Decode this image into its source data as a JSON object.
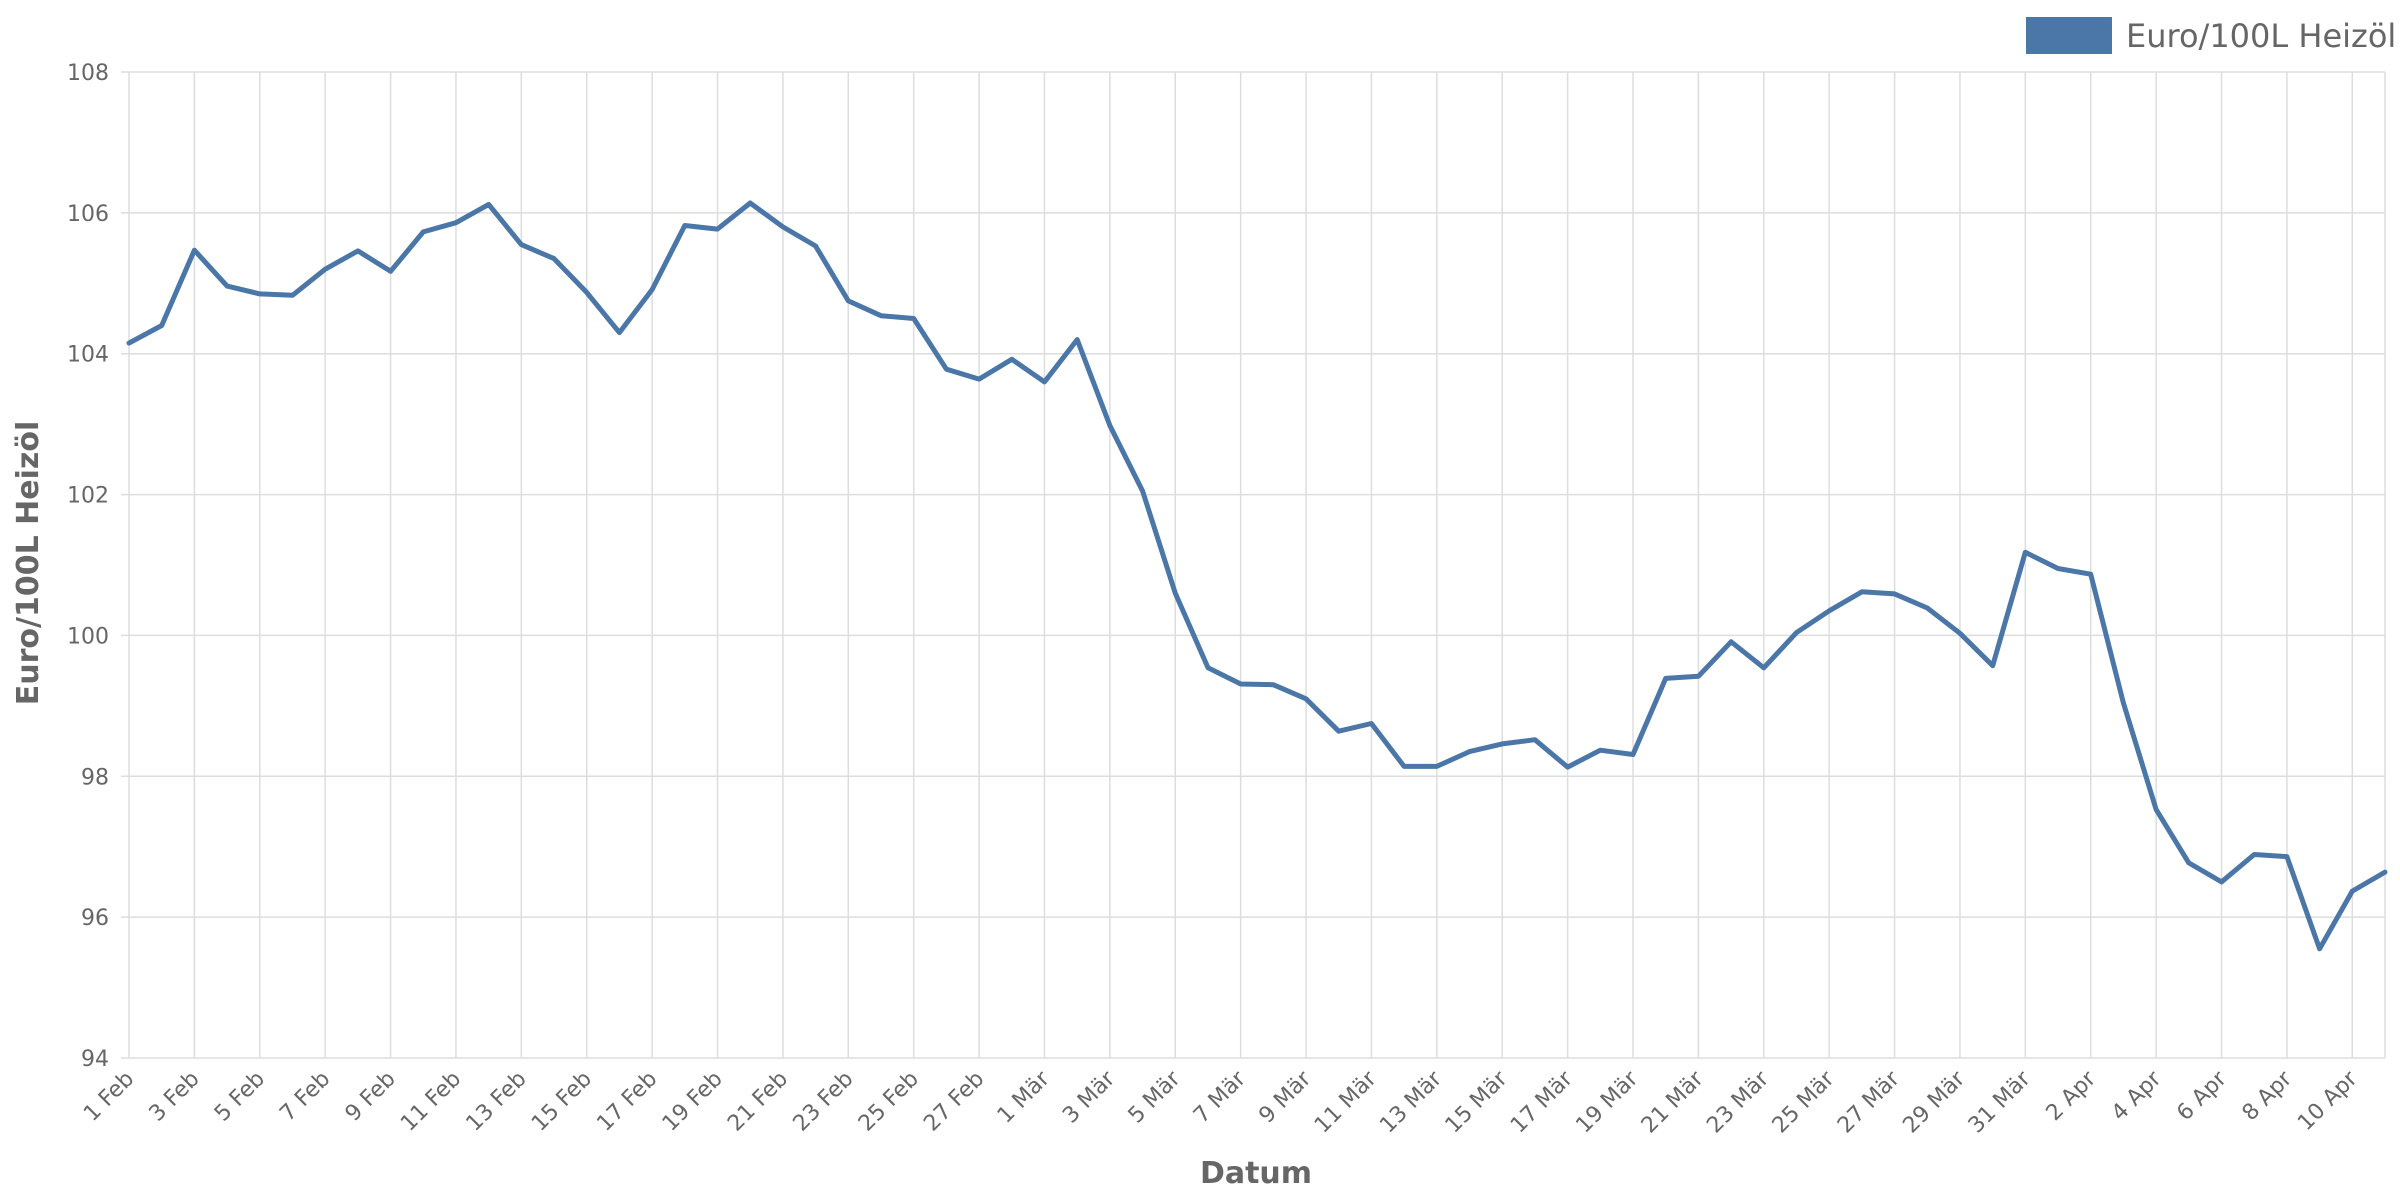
{
  "chart_data": {
    "type": "line",
    "xlabel": "Datum",
    "ylabel": "Euro/100L Heizöl",
    "ylim": [
      94,
      108
    ],
    "yticks": [
      94,
      96,
      98,
      100,
      102,
      104,
      106,
      108
    ],
    "grid": true,
    "legend_position": "top-right",
    "x": [
      "1 Feb",
      "2 Feb",
      "3 Feb",
      "4 Feb",
      "5 Feb",
      "6 Feb",
      "7 Feb",
      "8 Feb",
      "9 Feb",
      "10 Feb",
      "11 Feb",
      "12 Feb",
      "13 Feb",
      "14 Feb",
      "15 Feb",
      "16 Feb",
      "17 Feb",
      "18 Feb",
      "19 Feb",
      "20 Feb",
      "21 Feb",
      "22 Feb",
      "23 Feb",
      "24 Feb",
      "25 Feb",
      "26 Feb",
      "27 Feb",
      "28 Feb",
      "1 Mär",
      "2 Mär",
      "3 Mär",
      "4 Mär",
      "5 Mär",
      "6 Mär",
      "7 Mär",
      "8 Mär",
      "9 Mär",
      "10 Mär",
      "11 Mär",
      "12 Mär",
      "13 Mär",
      "14 Mär",
      "15 Mär",
      "16 Mär",
      "17 Mär",
      "18 Mär",
      "19 Mär",
      "20 Mär",
      "21 Mär",
      "22 Mär",
      "23 Mär",
      "24 Mär",
      "25 Mär",
      "26 Mär",
      "27 Mär",
      "28 Mär",
      "29 Mär",
      "30 Mär",
      "31 Mär",
      "1 Apr",
      "2 Apr",
      "3 Apr",
      "4 Apr",
      "5 Apr",
      "6 Apr",
      "7 Apr",
      "8 Apr",
      "9 Apr",
      "10 Apr",
      "11 Apr"
    ],
    "x_tick_labels": [
      "1 Feb",
      "3 Feb",
      "5 Feb",
      "7 Feb",
      "9 Feb",
      "11 Feb",
      "13 Feb",
      "15 Feb",
      "17 Feb",
      "19 Feb",
      "21 Feb",
      "23 Feb",
      "25 Feb",
      "27 Feb",
      "1 Mär",
      "3 Mär",
      "5 Mär",
      "7 Mär",
      "9 Mär",
      "11 Mär",
      "13 Mär",
      "15 Mär",
      "17 Mär",
      "19 Mär",
      "21 Mär",
      "23 Mär",
      "25 Mär",
      "27 Mär",
      "29 Mär",
      "31 Mär",
      "2 Apr",
      "4 Apr",
      "6 Apr",
      "8 Apr",
      "10 Apr"
    ],
    "series": [
      {
        "name": "Euro/100L Heizöl",
        "color": "#4a76a8",
        "values": [
          104.15,
          104.4,
          105.47,
          104.96,
          104.85,
          104.83,
          105.2,
          105.46,
          105.17,
          105.73,
          105.86,
          106.12,
          105.55,
          105.35,
          104.87,
          104.3,
          104.91,
          105.82,
          105.77,
          106.14,
          105.8,
          105.53,
          104.75,
          104.54,
          104.5,
          103.78,
          103.64,
          103.92,
          103.6,
          104.2,
          102.98,
          102.05,
          100.6,
          99.54,
          99.31,
          99.3,
          99.1,
          98.64,
          98.75,
          98.14,
          98.14,
          98.35,
          98.46,
          98.52,
          98.13,
          98.37,
          98.31,
          99.39,
          99.42,
          99.91,
          99.54,
          100.04,
          100.35,
          100.62,
          100.59,
          100.39,
          100.03,
          99.57,
          101.18,
          100.95,
          100.87,
          99.04,
          97.53,
          96.77,
          96.5,
          96.89,
          96.86,
          95.55,
          96.37,
          96.64
        ]
      }
    ]
  }
}
